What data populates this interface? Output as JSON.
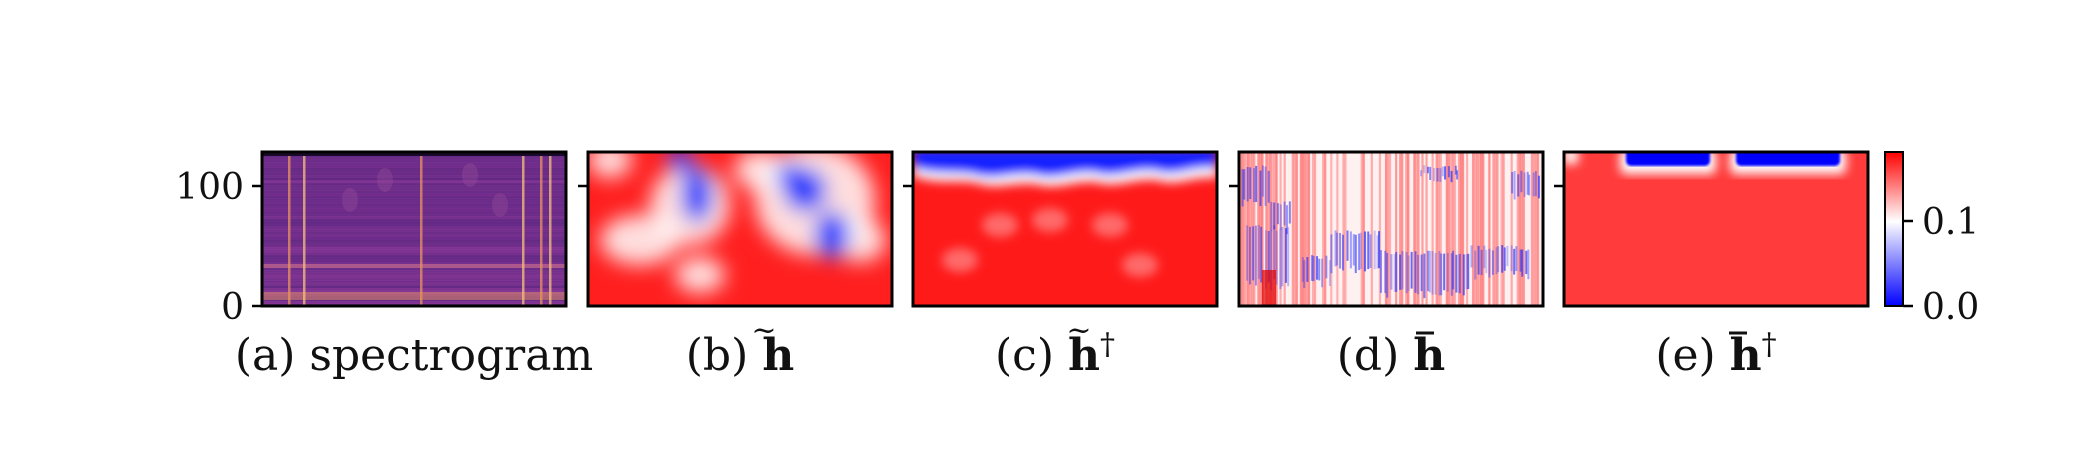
{
  "figure": {
    "panels": [
      {
        "id": "a",
        "caption": "(a) spectrogram",
        "caption_main": "(a) spectrogram",
        "symbol": "",
        "dagger": false,
        "kind": "spectrogram"
      },
      {
        "id": "b",
        "caption": "(b) h̃",
        "caption_main": "(b) ",
        "symbol": "h",
        "accent": "tilde",
        "dagger": false,
        "kind": "blobs"
      },
      {
        "id": "c",
        "caption": "(c) h̃†",
        "caption_main": "(c) ",
        "symbol": "h",
        "accent": "tilde",
        "dagger": true,
        "kind": "top-band"
      },
      {
        "id": "d",
        "caption": "(d) h̄",
        "caption_main": "(d) ",
        "symbol": "h",
        "accent": "bar",
        "dagger": false,
        "kind": "stripes"
      },
      {
        "id": "e",
        "caption": "(e) h̄†",
        "caption_main": "(e) ",
        "symbol": "h",
        "accent": "bar",
        "dagger": true,
        "kind": "two-rects"
      }
    ],
    "colors": {
      "diverging_low": "#0000ff",
      "diverging_mid": "#ffffff",
      "diverging_high": "#ff0000",
      "spectrogram_base": "#5a2a8a",
      "spectrogram_peak": "#f6c27a"
    }
  },
  "chart_data": {
    "type": "heatmap",
    "y_axis": {
      "ticks": [
        0,
        100
      ],
      "tick_labels": [
        "0",
        "100"
      ],
      "ylim": [
        0,
        128
      ]
    },
    "colorbar": {
      "ticks": [
        0.0,
        0.1
      ],
      "tick_labels": [
        "0.0",
        "0.1"
      ],
      "range": [
        0.0,
        0.18
      ],
      "colormap": "bwr"
    },
    "panels": [
      "(a) spectrogram",
      "(b) h̃",
      "(c) h̃†",
      "(d) h̄",
      "(e) h̄†"
    ]
  }
}
